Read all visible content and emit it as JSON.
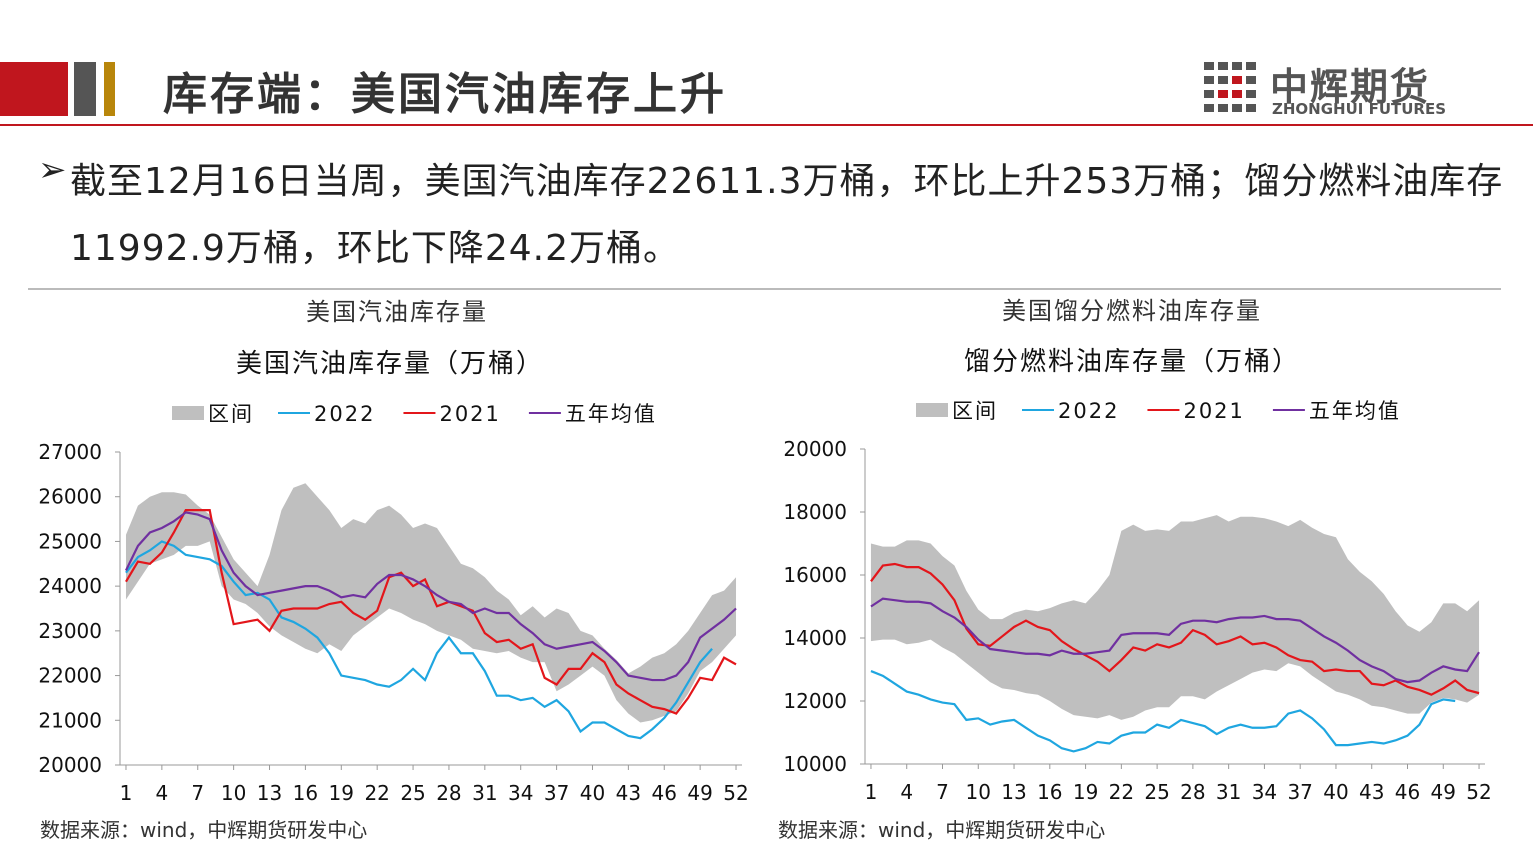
{
  "header": {
    "title": "库存端：美国汽油库存上升",
    "logo_cn": "中辉期货",
    "logo_en": "ZHONGHUI FUTURES"
  },
  "bullet": "截至12月16日当周，美国汽油库存22611.3万桶，环比上升253万桶；馏分燃料油库存11992.9万桶，环比下降24.2万桶。",
  "chart_data": [
    {
      "type": "line",
      "caption": "美国汽油库存量",
      "title": "美国汽油库存量（万桶）",
      "source": "数据来源：wind，中辉期货研发中心",
      "x": [
        1,
        2,
        3,
        4,
        5,
        6,
        7,
        8,
        9,
        10,
        11,
        12,
        13,
        14,
        15,
        16,
        17,
        18,
        19,
        20,
        21,
        22,
        23,
        24,
        25,
        26,
        27,
        28,
        29,
        30,
        31,
        32,
        33,
        34,
        35,
        36,
        37,
        38,
        39,
        40,
        41,
        42,
        43,
        44,
        45,
        46,
        47,
        48,
        49,
        50,
        51,
        52
      ],
      "xlim": [
        0.5,
        52.5
      ],
      "xticks": [
        1,
        4,
        7,
        10,
        13,
        16,
        19,
        22,
        25,
        28,
        31,
        34,
        37,
        40,
        43,
        46,
        49,
        52
      ],
      "ylim": [
        20000,
        27000
      ],
      "yticks": [
        20000,
        21000,
        22000,
        23000,
        24000,
        25000,
        26000,
        27000
      ],
      "grid": false,
      "series": [
        {
          "name": "区间",
          "type": "band",
          "color": "#bfbfbf",
          "low": [
            23700,
            24100,
            24500,
            24600,
            24700,
            24900,
            24900,
            25000,
            24000,
            23700,
            23600,
            23400,
            23100,
            22900,
            22750,
            22600,
            22500,
            22700,
            22550,
            22900,
            23100,
            23300,
            23500,
            23400,
            23250,
            23150,
            23000,
            22900,
            22800,
            22600,
            22550,
            22500,
            22550,
            22400,
            22300,
            22300,
            21650,
            21800,
            22000,
            22200,
            22000,
            21450,
            21150,
            20950,
            21000,
            21100,
            21200,
            21600,
            22100,
            22300,
            22600,
            22900
          ],
          "high": [
            25150,
            25800,
            26000,
            26100,
            26100,
            26050,
            25800,
            25600,
            25100,
            24600,
            24300,
            24000,
            24700,
            25700,
            26200,
            26300,
            26000,
            25700,
            25300,
            25500,
            25400,
            25700,
            25800,
            25600,
            25300,
            25400,
            25300,
            24900,
            24500,
            24400,
            24200,
            23900,
            23700,
            23350,
            23550,
            23300,
            23500,
            23400,
            23000,
            22900,
            22600,
            22350,
            22050,
            22200,
            22400,
            22500,
            22700,
            23000,
            23400,
            23800,
            23900,
            24200
          ]
        },
        {
          "name": "2022",
          "color": "#1fa6e0",
          "values": [
            24300,
            24650,
            24800,
            25000,
            24900,
            24700,
            24650,
            24600,
            24450,
            24100,
            23800,
            23850,
            23700,
            23300,
            23200,
            23050,
            22850,
            22500,
            22000,
            21950,
            21900,
            21800,
            21750,
            21900,
            22150,
            21900,
            22500,
            22850,
            22500,
            22500,
            22100,
            21550,
            21550,
            21450,
            21500,
            21300,
            21450,
            21200,
            20750,
            20950,
            20950,
            20800,
            20650,
            20600,
            20800,
            21050,
            21400,
            21850,
            22300,
            22600,
            null,
            null
          ]
        },
        {
          "name": "2021",
          "color": "#e3161b",
          "values": [
            24100,
            24550,
            24500,
            24750,
            25200,
            25700,
            25700,
            25700,
            24300,
            23150,
            23200,
            23250,
            23000,
            23450,
            23500,
            23500,
            23500,
            23600,
            23650,
            23400,
            23250,
            23450,
            24200,
            24300,
            24000,
            24150,
            23550,
            23650,
            23550,
            23450,
            22950,
            22750,
            22800,
            22600,
            22700,
            21950,
            21800,
            22150,
            22150,
            22500,
            22300,
            21800,
            21600,
            21450,
            21300,
            21250,
            21150,
            21500,
            21950,
            21900,
            22400,
            22250
          ]
        },
        {
          "name": "五年均值",
          "color": "#7030a0",
          "values": [
            24350,
            24900,
            25200,
            25300,
            25450,
            25650,
            25600,
            25500,
            24800,
            24300,
            24000,
            23800,
            23850,
            23900,
            23950,
            24000,
            24000,
            23900,
            23750,
            23800,
            23750,
            24050,
            24250,
            24250,
            24150,
            24000,
            23800,
            23650,
            23600,
            23400,
            23500,
            23400,
            23400,
            23150,
            22950,
            22700,
            22600,
            22650,
            22700,
            22750,
            22550,
            22300,
            22000,
            21950,
            21900,
            21900,
            22000,
            22300,
            22850,
            23050,
            23250,
            23500
          ]
        }
      ]
    },
    {
      "type": "line",
      "caption": "美国馏分燃料油库存量",
      "title": "馏分燃料油库存量（万桶）",
      "source": "数据来源：wind，中辉期货研发中心",
      "x": [
        1,
        2,
        3,
        4,
        5,
        6,
        7,
        8,
        9,
        10,
        11,
        12,
        13,
        14,
        15,
        16,
        17,
        18,
        19,
        20,
        21,
        22,
        23,
        24,
        25,
        26,
        27,
        28,
        29,
        30,
        31,
        32,
        33,
        34,
        35,
        36,
        37,
        38,
        39,
        40,
        41,
        42,
        43,
        44,
        45,
        46,
        47,
        48,
        49,
        50,
        51,
        52
      ],
      "xlim": [
        0.5,
        52.5
      ],
      "xticks": [
        1,
        4,
        7,
        10,
        13,
        16,
        19,
        22,
        25,
        28,
        31,
        34,
        37,
        40,
        43,
        46,
        49,
        52
      ],
      "ylim": [
        10000,
        20000
      ],
      "yticks": [
        10000,
        12000,
        14000,
        16000,
        18000,
        20000
      ],
      "grid": false,
      "series": [
        {
          "name": "区间",
          "type": "band",
          "color": "#bfbfbf",
          "low": [
            13900,
            13950,
            13950,
            13800,
            13850,
            13950,
            13700,
            13500,
            13200,
            12900,
            12600,
            12400,
            12350,
            12250,
            12200,
            12000,
            11750,
            11550,
            11500,
            11450,
            11550,
            11400,
            11500,
            11700,
            11800,
            11800,
            12150,
            12150,
            12050,
            12300,
            12500,
            12700,
            12900,
            13000,
            12950,
            13200,
            13100,
            12800,
            12550,
            12300,
            12200,
            12050,
            11850,
            11800,
            11700,
            11600,
            11600,
            11950,
            12100,
            12050,
            11950,
            12200
          ],
          "high": [
            17000,
            16900,
            16900,
            17100,
            17100,
            17000,
            16600,
            16300,
            15500,
            14900,
            14600,
            14600,
            14800,
            14900,
            14850,
            14950,
            15100,
            15200,
            15100,
            15500,
            16000,
            17400,
            17600,
            17400,
            17450,
            17400,
            17700,
            17700,
            17800,
            17900,
            17700,
            17850,
            17850,
            17800,
            17700,
            17550,
            17750,
            17500,
            17300,
            17200,
            16500,
            16100,
            15800,
            15400,
            14850,
            14400,
            14200,
            14500,
            15100,
            15100,
            14850,
            15200
          ]
        },
        {
          "name": "2022",
          "color": "#1fa6e0",
          "values": [
            12950,
            12800,
            12550,
            12300,
            12200,
            12050,
            11950,
            11900,
            11400,
            11450,
            11250,
            11350,
            11400,
            11150,
            10900,
            10750,
            10500,
            10400,
            10500,
            10700,
            10650,
            10900,
            11000,
            11000,
            11250,
            11150,
            11400,
            11300,
            11200,
            10950,
            11150,
            11250,
            11150,
            11150,
            11200,
            11600,
            11700,
            11450,
            11100,
            10600,
            10600,
            10650,
            10700,
            10650,
            10750,
            10900,
            11250,
            11900,
            12050,
            12000,
            null,
            null
          ]
        },
        {
          "name": "2021",
          "color": "#e3161b",
          "values": [
            15800,
            16300,
            16350,
            16250,
            16250,
            16050,
            15700,
            15200,
            14300,
            13800,
            13750,
            14050,
            14350,
            14550,
            14350,
            14250,
            13900,
            13650,
            13450,
            13250,
            12950,
            13300,
            13700,
            13600,
            13800,
            13700,
            13850,
            14250,
            14100,
            13800,
            13900,
            14050,
            13800,
            13850,
            13700,
            13450,
            13300,
            13250,
            12950,
            13000,
            12950,
            12950,
            12550,
            12500,
            12650,
            12450,
            12350,
            12200,
            12400,
            12650,
            12350,
            12250
          ]
        },
        {
          "name": "五年均值",
          "color": "#7030a0",
          "values": [
            15000,
            15250,
            15200,
            15150,
            15150,
            15100,
            14850,
            14650,
            14350,
            13950,
            13650,
            13600,
            13550,
            13500,
            13500,
            13450,
            13600,
            13500,
            13500,
            13550,
            13600,
            14100,
            14150,
            14150,
            14150,
            14100,
            14450,
            14550,
            14550,
            14500,
            14600,
            14650,
            14650,
            14700,
            14600,
            14600,
            14550,
            14300,
            14050,
            13850,
            13600,
            13300,
            13100,
            12950,
            12700,
            12600,
            12650,
            12900,
            13100,
            13000,
            12950,
            13550
          ]
        }
      ]
    }
  ]
}
